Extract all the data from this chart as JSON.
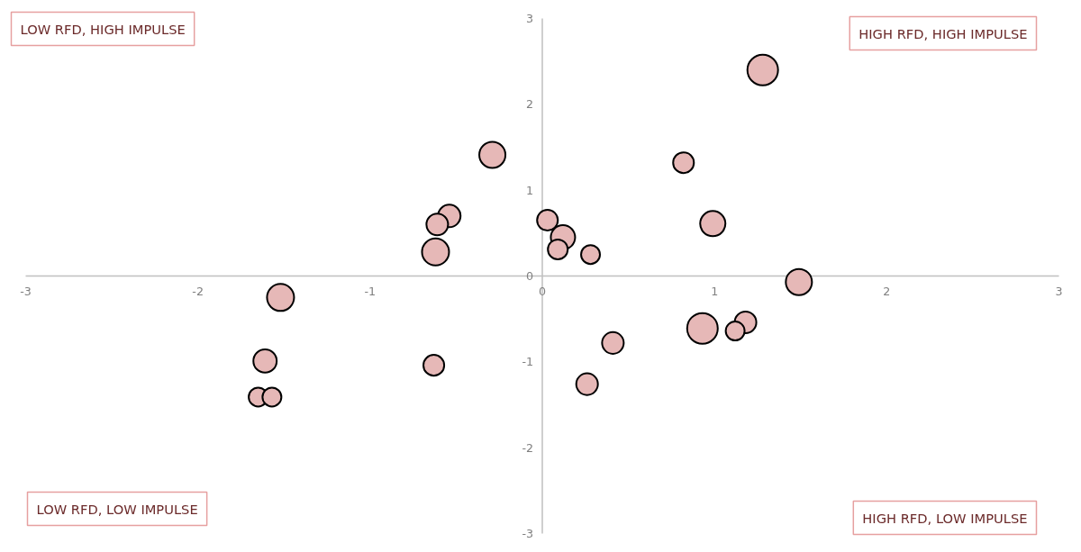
{
  "chart_data": {
    "type": "bubble",
    "xlim": [
      -3,
      3
    ],
    "ylim": [
      -3,
      3
    ],
    "xticks": [
      -3,
      -2,
      -1,
      0,
      1,
      2,
      3
    ],
    "yticks": [
      -3,
      -2,
      -1,
      0,
      1,
      2,
      3
    ],
    "grid": false,
    "marker": "circle",
    "annotations": [
      "LOW RFD, HIGH IMPULSE",
      "HIGH RFD, HIGH IMPULSE",
      "LOW RFD, LOW IMPULSE",
      "HIGH RFD, LOW IMPULSE"
    ],
    "series": [
      {
        "color": "#e6b8b7",
        "x": [
          1.28,
          -0.29,
          0.82,
          0.99,
          -0.54,
          -0.61,
          -0.62,
          0.03,
          0.12,
          0.09,
          0.28,
          -1.52,
          1.49,
          -1.61,
          -1.65,
          -1.57,
          -0.63,
          0.41,
          0.26,
          0.93,
          1.18,
          1.12
        ],
        "values": [
          2.4,
          1.41,
          1.32,
          0.61,
          0.7,
          0.6,
          0.28,
          0.65,
          0.45,
          0.31,
          0.25,
          -0.25,
          -0.07,
          -0.99,
          -1.41,
          -1.41,
          -1.04,
          -0.78,
          -1.26,
          -0.61,
          -0.54,
          -0.64
        ],
        "sizes": [
          1,
          0.73,
          0.46,
          0.68,
          0.54,
          0.5,
          0.78,
          0.46,
          0.63,
          0.42,
          0.38,
          0.78,
          0.73,
          0.58,
          0.38,
          0.38,
          0.46,
          0.5,
          0.5,
          1,
          0.5,
          0.38
        ]
      }
    ]
  }
}
